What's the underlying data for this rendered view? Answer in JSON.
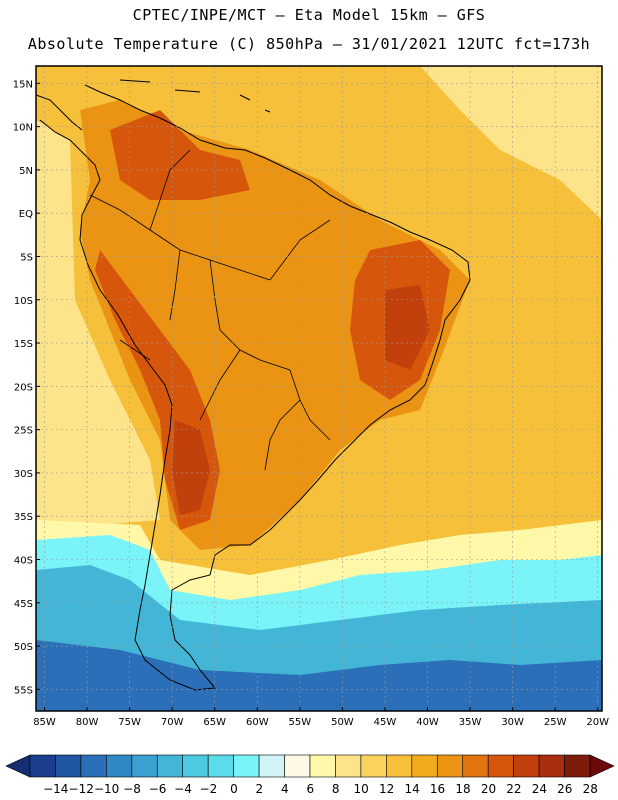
{
  "header": {
    "line1": "CPTEC/INPE/MCT –  Eta Model 15km – GFS",
    "line2": "Absolute Temperature (C) 850hPa – 31/01/2021 12UTC fct=173h"
  },
  "axes": {
    "lat_labels": [
      "15N",
      "10N",
      "5N",
      "EQ",
      "5S",
      "10S",
      "15S",
      "20S",
      "25S",
      "30S",
      "35S",
      "40S",
      "45S",
      "50S",
      "55S"
    ],
    "lat_values": [
      15,
      10,
      5,
      0,
      -5,
      -10,
      -15,
      -20,
      -25,
      -30,
      -35,
      -40,
      -45,
      -50,
      -55
    ],
    "lon_labels": [
      "85W",
      "80W",
      "75W",
      "70W",
      "65W",
      "60W",
      "55W",
      "50W",
      "45W",
      "40W",
      "35W",
      "30W",
      "25W",
      "20W"
    ],
    "lon_values": [
      -85,
      -80,
      -75,
      -70,
      -65,
      -60,
      -55,
      -50,
      -45,
      -40,
      -35,
      -30,
      -25,
      -20
    ],
    "lat_range": [
      -57.5,
      17.0
    ],
    "lon_range": [
      -86.0,
      -19.5
    ]
  },
  "colorbar": {
    "labels": [
      "-14",
      "-12",
      "-10",
      "-8",
      "-6",
      "-4",
      "-2",
      "0",
      "2",
      "4",
      "6",
      "8",
      "10",
      "12",
      "14",
      "16",
      "18",
      "20",
      "22",
      "24",
      "26",
      "28"
    ],
    "colors": [
      "#1a3d8c",
      "#2156a3",
      "#2a6fb8",
      "#3288c5",
      "#3aa0d0",
      "#43b6d8",
      "#4ec9e2",
      "#5cdcea",
      "#7af4f8",
      "#d0f4f8",
      "#fff8e6",
      "#fff8a8",
      "#fde48a",
      "#fad25e",
      "#f6c03a",
      "#f2ab1c",
      "#eb9414",
      "#e27410",
      "#d6570c",
      "#c2400c",
      "#a82e10",
      "#7e1c0c"
    ],
    "low_color": "#142e70",
    "high_color": "#6a0a0a"
  },
  "fields": {
    "background": "#f6c03a",
    "land_hot": "#eb9414",
    "land_very_hot": "#d6570c",
    "land_extreme": "#c2400c",
    "cool_band": "#fde48a",
    "pale": "#fff8a8",
    "cold1": "#7af4f8",
    "cold2": "#43b6d8",
    "cold3": "#2a6fb8"
  }
}
